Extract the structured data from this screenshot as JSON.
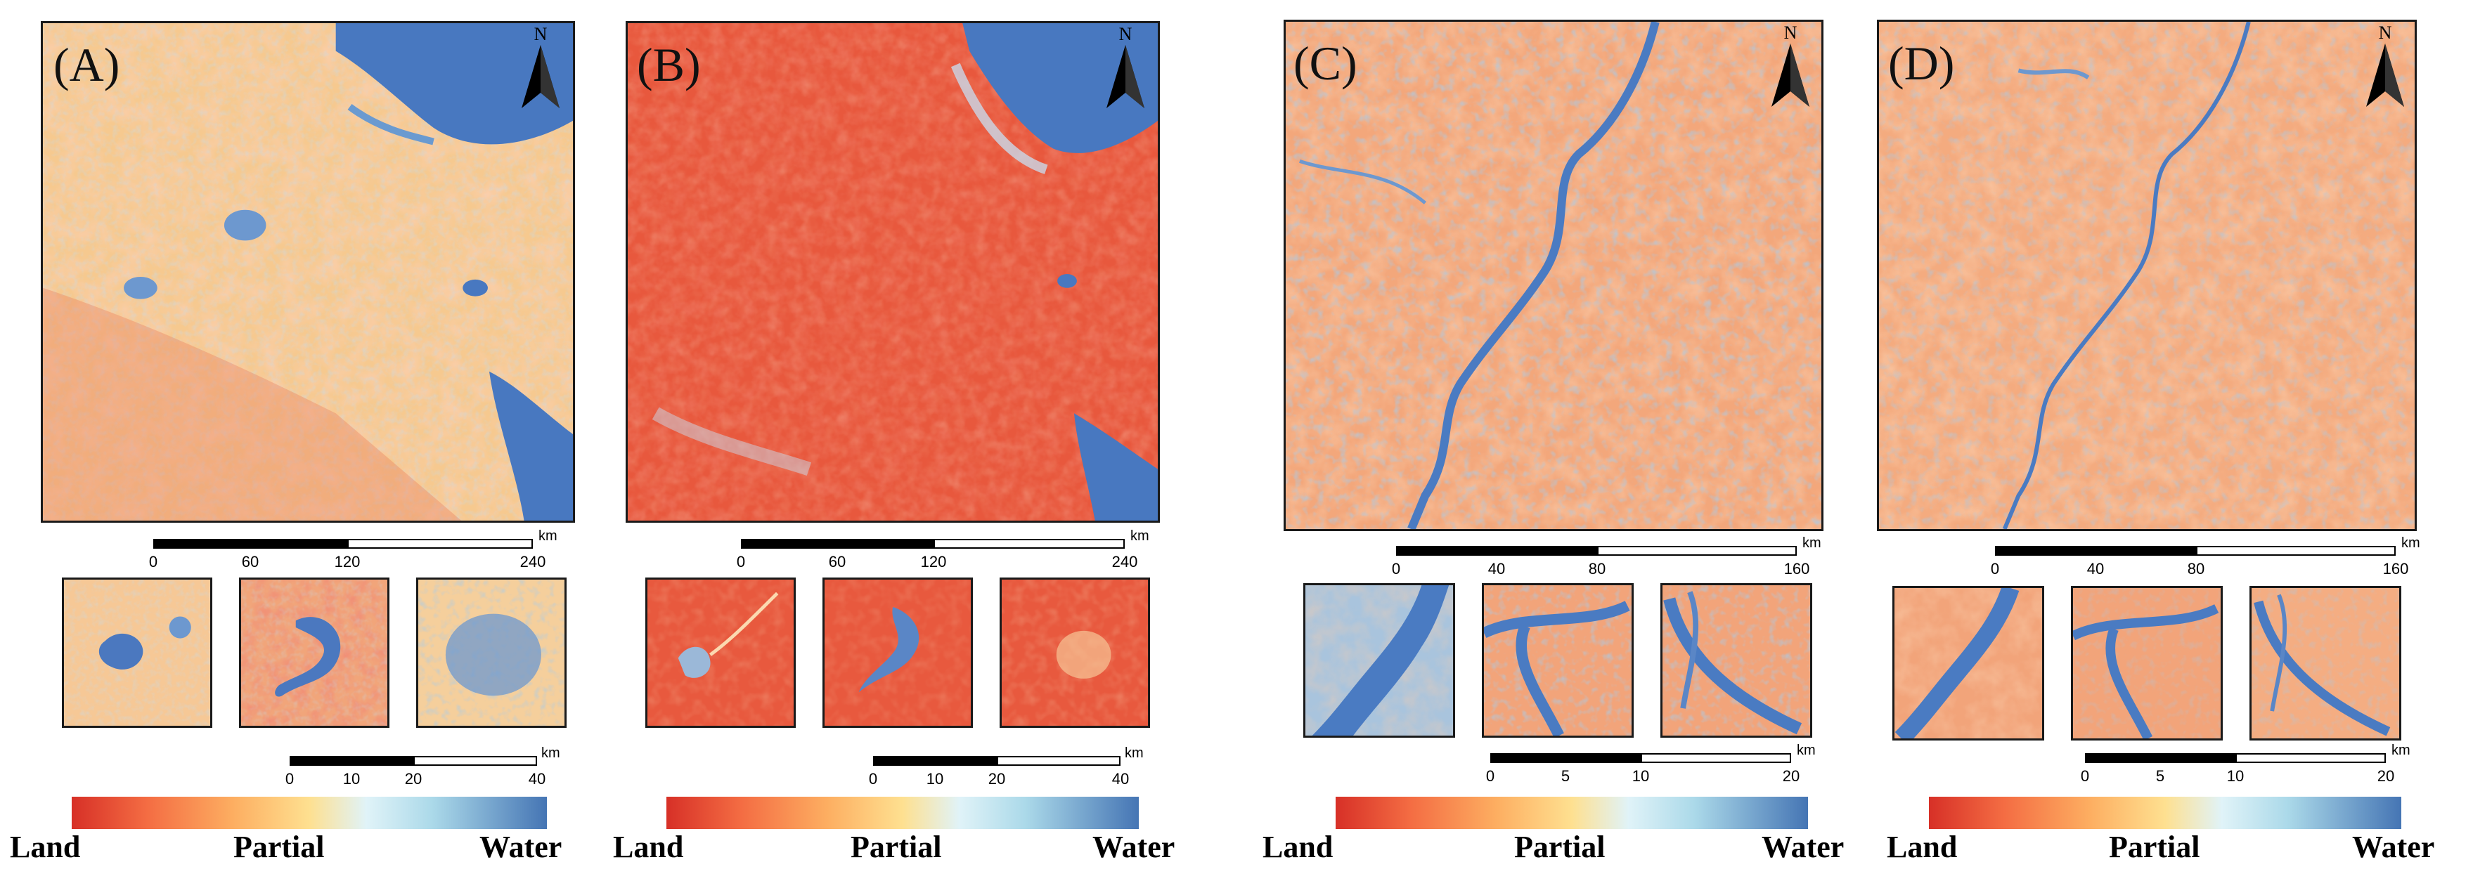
{
  "panels": [
    {
      "label": "(A)",
      "north": "N",
      "main_scale": {
        "ticks": [
          "0",
          "60",
          "120",
          "240"
        ],
        "unit": "km"
      },
      "inset_scale": {
        "ticks": [
          "0",
          "10",
          "20",
          "40"
        ],
        "unit": "km"
      },
      "colorbar": {
        "left": "Land",
        "middle": "Partial",
        "right": "Water"
      }
    },
    {
      "label": "(B)",
      "north": "N",
      "main_scale": {
        "ticks": [
          "0",
          "60",
          "120",
          "240"
        ],
        "unit": "km"
      },
      "inset_scale": {
        "ticks": [
          "0",
          "10",
          "20",
          "40"
        ],
        "unit": "km"
      },
      "colorbar": {
        "left": "Land",
        "middle": "Partial",
        "right": "Water"
      }
    },
    {
      "label": "(C)",
      "north": "N",
      "main_scale": {
        "ticks": [
          "0",
          "40",
          "80",
          "160"
        ],
        "unit": "km"
      },
      "inset_scale": {
        "ticks": [
          "0",
          "5",
          "10",
          "20"
        ],
        "unit": "km"
      },
      "colorbar": {
        "left": "Land",
        "middle": "Partial",
        "right": "Water"
      }
    },
    {
      "label": "(D)",
      "north": "N",
      "main_scale": {
        "ticks": [
          "0",
          "40",
          "80",
          "160"
        ],
        "unit": "km"
      },
      "inset_scale": {
        "ticks": [
          "0",
          "5",
          "10",
          "20"
        ],
        "unit": "km"
      },
      "colorbar": {
        "left": "Land",
        "middle": "Partial",
        "right": "Water"
      }
    }
  ],
  "colors": {
    "land": "#d73027",
    "partial": "#fee090",
    "water": "#4575b4"
  }
}
